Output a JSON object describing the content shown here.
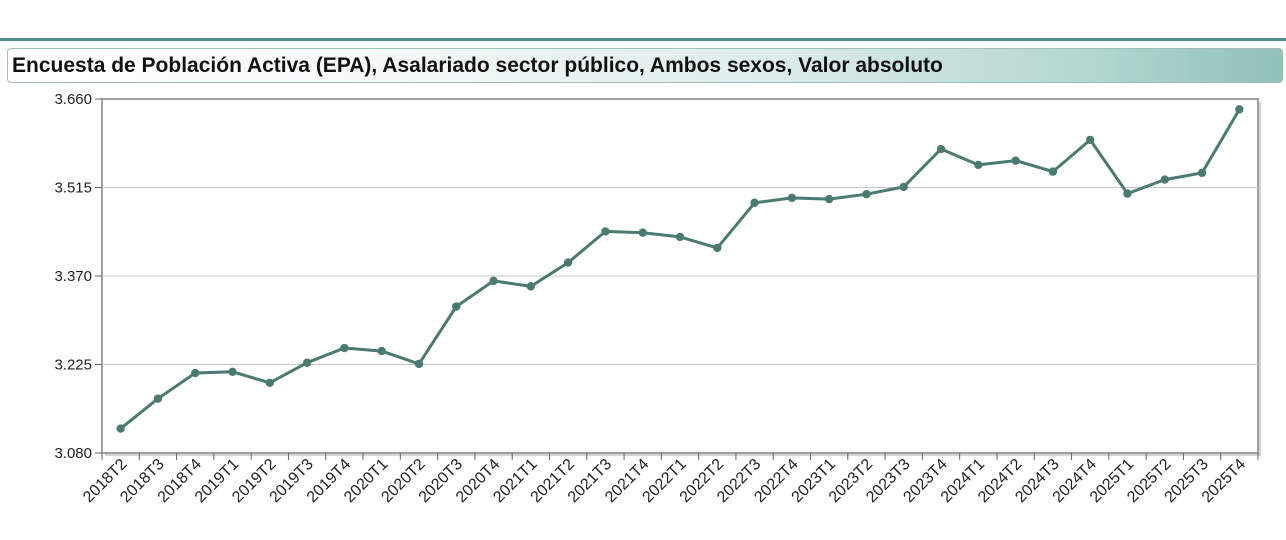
{
  "title": "Encuesta de Población Activa (EPA), Asalariado sector público, Ambos sexos, Valor absoluto",
  "colors": {
    "line": "#4a7a70",
    "accent": "#4e8c84",
    "grid": "#c8c8c8",
    "frame": "#a0a0a0"
  },
  "chart_data": {
    "type": "line",
    "title": "Encuesta de Población Activa (EPA), Asalariado sector público, Ambos sexos, Valor absoluto",
    "xlabel": "",
    "ylabel": "",
    "ylim": [
      3080,
      3660
    ],
    "yticks": [
      3080,
      3225,
      3370,
      3515,
      3660
    ],
    "ytick_labels": [
      "3.080",
      "3.225",
      "3.370",
      "3.515",
      "3.660"
    ],
    "grid": true,
    "categories": [
      "2018T2",
      "2018T3",
      "2018T4",
      "2019T1",
      "2019T2",
      "2019T3",
      "2019T4",
      "2020T1",
      "2020T2",
      "2020T3",
      "2020T4",
      "2021T1",
      "2021T2",
      "2021T3",
      "2021T4",
      "2022T1",
      "2022T2",
      "2022T3",
      "2022T4",
      "2023T1",
      "2023T2",
      "2023T3",
      "2023T4",
      "2024T1",
      "2024T2",
      "2024T3",
      "2024T4",
      "2025T1",
      "2025T2",
      "2025T3",
      "2025T4"
    ],
    "series": [
      {
        "values": [
          3120,
          3169,
          3211,
          3213,
          3195,
          3228,
          3252,
          3247,
          3226,
          3320,
          3362,
          3353,
          3392,
          3443,
          3441,
          3434,
          3416,
          3490,
          3498,
          3496,
          3504,
          3516,
          3578,
          3552,
          3559,
          3541,
          3593,
          3505,
          3528,
          3539,
          3643
        ]
      }
    ]
  }
}
